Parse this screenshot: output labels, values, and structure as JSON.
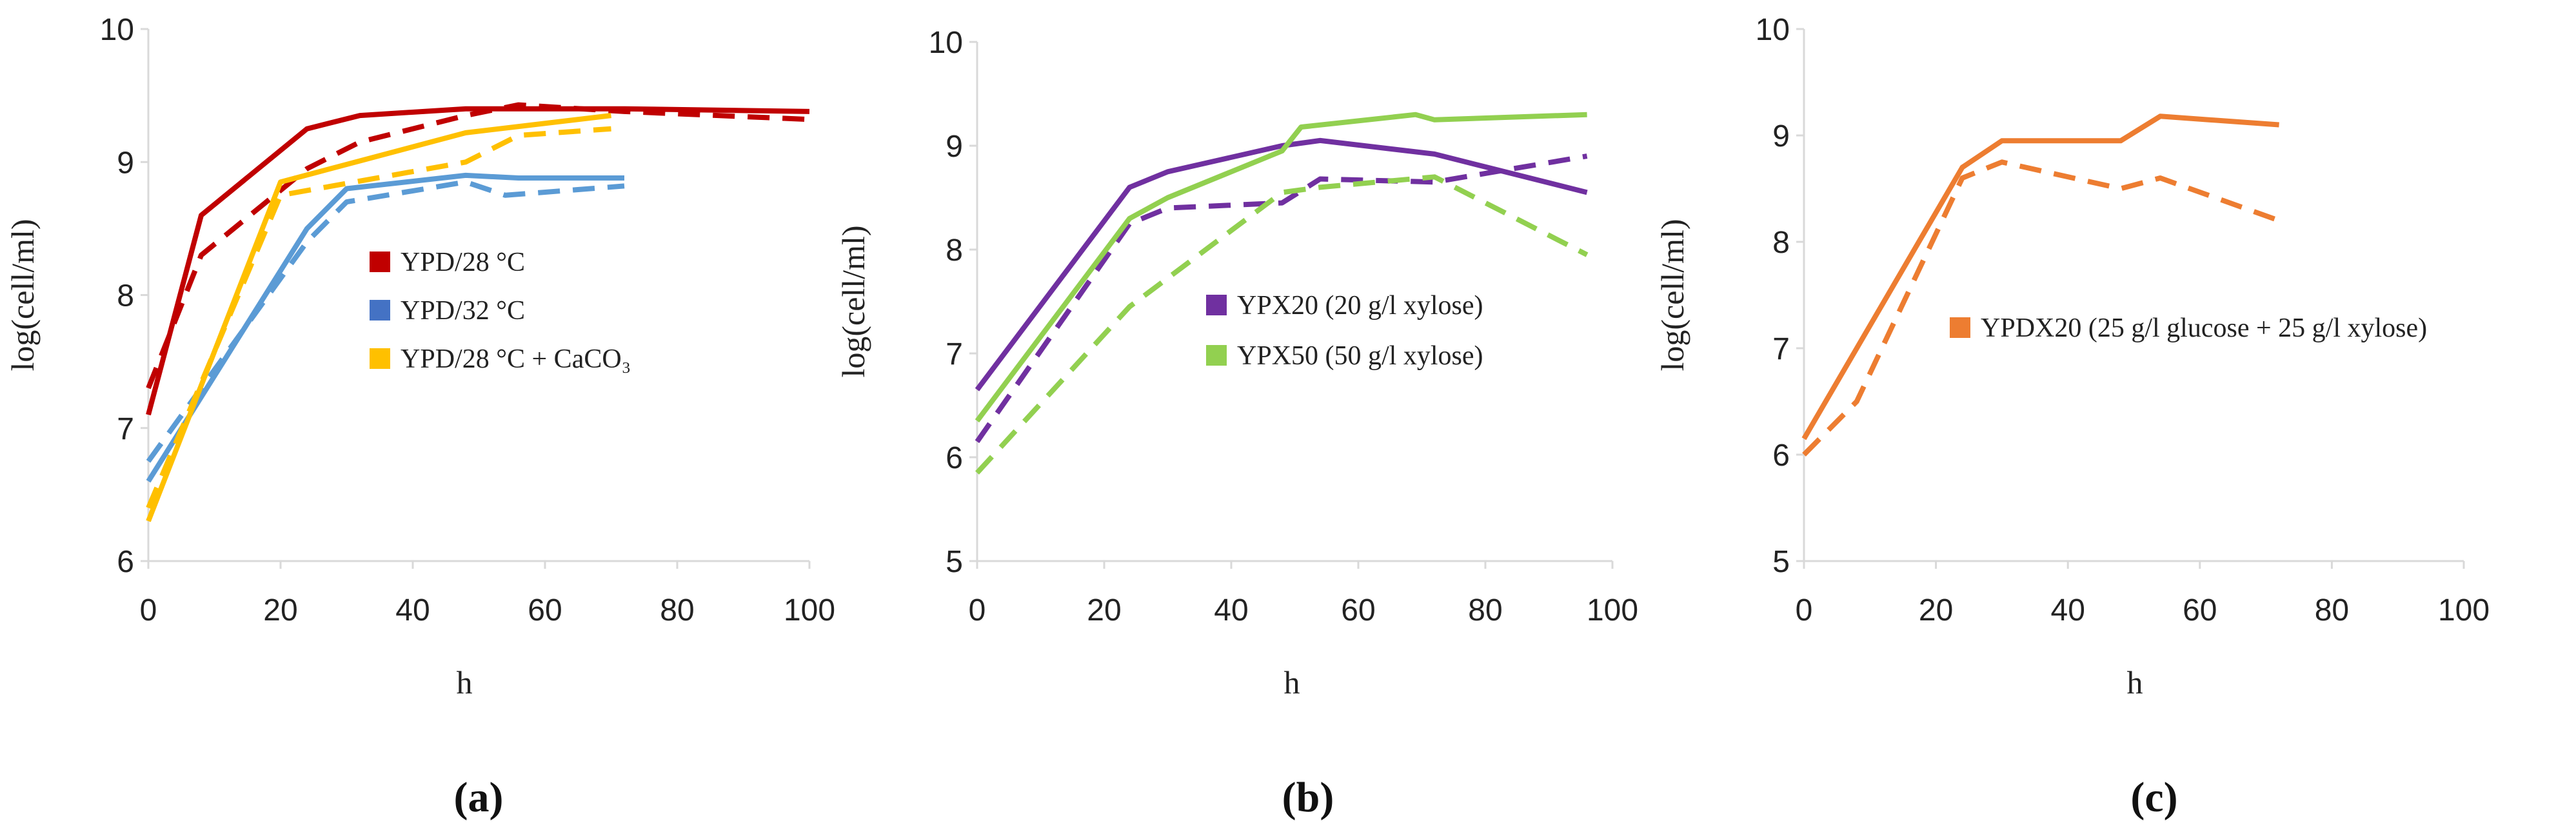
{
  "chart_data": [
    {
      "type": "line",
      "panel_label": "(a)",
      "xlabel": "h",
      "ylabel": "log(cell/ml)",
      "xlim": [
        0,
        100
      ],
      "ylim": [
        6,
        10
      ],
      "xticks": [
        0,
        20,
        40,
        60,
        80,
        100
      ],
      "yticks": [
        6,
        7,
        8,
        9,
        10
      ],
      "grid": false,
      "legend_position": "center",
      "legend": [
        {
          "label": "YPD/28 °C",
          "color": "#C00000"
        },
        {
          "label": "YPD/32 °C",
          "color": "#4472C4"
        },
        {
          "label": "YPD/28 °C + CaCO₃",
          "color": "#FFC000"
        }
      ],
      "series": [
        {
          "name": "YPD/28 °C solid",
          "color": "#C00000",
          "style": "solid",
          "x": [
            0,
            8,
            24,
            32,
            48,
            72,
            100
          ],
          "y": [
            7.1,
            8.6,
            9.25,
            9.35,
            9.4,
            9.4,
            9.38
          ]
        },
        {
          "name": "YPD/28 °C dashed",
          "color": "#C00000",
          "style": "dashed",
          "x": [
            0,
            8,
            24,
            32,
            48,
            56,
            72,
            100
          ],
          "y": [
            7.3,
            8.3,
            8.95,
            9.15,
            9.35,
            9.43,
            9.38,
            9.32
          ]
        },
        {
          "name": "YPD/32 °C solid",
          "color": "#5B9BD5",
          "style": "solid",
          "x": [
            0,
            24,
            30,
            48,
            56,
            72
          ],
          "y": [
            6.6,
            8.5,
            8.8,
            8.9,
            8.88,
            8.88
          ]
        },
        {
          "name": "YPD/32 °C dashed",
          "color": "#5B9BD5",
          "style": "dashed",
          "x": [
            0,
            24,
            30,
            48,
            54,
            72
          ],
          "y": [
            6.75,
            8.4,
            8.7,
            8.85,
            8.75,
            8.82
          ]
        },
        {
          "name": "YPD/28 °C + CaCO₃ solid",
          "color": "#FFC000",
          "style": "solid",
          "x": [
            0,
            20,
            48,
            70
          ],
          "y": [
            6.3,
            8.85,
            9.22,
            9.35
          ]
        },
        {
          "name": "YPD/28 °C + CaCO₃ dashed",
          "color": "#FFC000",
          "style": "dashed",
          "x": [
            0,
            20,
            48,
            56,
            70
          ],
          "y": [
            6.4,
            8.75,
            9.0,
            9.2,
            9.25
          ]
        }
      ]
    },
    {
      "type": "line",
      "panel_label": "(b)",
      "xlabel": "h",
      "ylabel": "log(cell/ml)",
      "xlim": [
        0,
        100
      ],
      "ylim": [
        5,
        10
      ],
      "xticks": [
        0,
        20,
        40,
        60,
        80,
        100
      ],
      "yticks": [
        5,
        6,
        7,
        8,
        9,
        10
      ],
      "grid": false,
      "legend_position": "center-right",
      "legend": [
        {
          "label": "YPX20 (20 g/l xylose)",
          "color": "#7030A0"
        },
        {
          "label": "YPX50 (50 g/l xylose)",
          "color": "#92D050"
        }
      ],
      "series": [
        {
          "name": "YPX20 solid",
          "color": "#7030A0",
          "style": "solid",
          "x": [
            0,
            24,
            30,
            48,
            54,
            72,
            96
          ],
          "y": [
            6.65,
            8.6,
            8.75,
            9.0,
            9.05,
            8.92,
            8.55
          ]
        },
        {
          "name": "YPX20 dashed",
          "color": "#7030A0",
          "style": "dashed",
          "x": [
            0,
            24,
            30,
            48,
            54,
            72,
            96
          ],
          "y": [
            6.15,
            8.25,
            8.4,
            8.45,
            8.68,
            8.65,
            8.9
          ]
        },
        {
          "name": "YPX50 solid",
          "color": "#92D050",
          "style": "solid",
          "x": [
            0,
            24,
            30,
            48,
            51,
            69,
            72,
            96
          ],
          "y": [
            6.35,
            8.3,
            8.5,
            8.95,
            9.18,
            9.3,
            9.25,
            9.3
          ]
        },
        {
          "name": "YPX50 dashed",
          "color": "#92D050",
          "style": "dashed",
          "x": [
            0,
            24,
            48,
            54,
            72,
            96
          ],
          "y": [
            5.85,
            7.45,
            8.55,
            8.6,
            8.7,
            7.95
          ]
        }
      ]
    },
    {
      "type": "line",
      "panel_label": "(c)",
      "xlabel": "h",
      "ylabel": "log(cell/ml)",
      "xlim": [
        0,
        100
      ],
      "ylim": [
        5,
        10
      ],
      "xticks": [
        0,
        20,
        40,
        60,
        80,
        100
      ],
      "yticks": [
        5,
        6,
        7,
        8,
        9,
        10
      ],
      "grid": false,
      "legend_position": "center-right",
      "legend": [
        {
          "label": "YPDX20 (25 g/l glucose + 25 g/l xylose)",
          "color": "#ED7D31"
        }
      ],
      "series": [
        {
          "name": "YPDX20 solid",
          "color": "#ED7D31",
          "style": "solid",
          "x": [
            0,
            24,
            30,
            48,
            54,
            72
          ],
          "y": [
            6.15,
            8.7,
            8.95,
            8.95,
            9.18,
            9.1
          ]
        },
        {
          "name": "YPDX20 dashed",
          "color": "#ED7D31",
          "style": "dashed",
          "x": [
            0,
            8,
            24,
            30,
            48,
            54,
            72
          ],
          "y": [
            6.0,
            6.5,
            8.6,
            8.75,
            8.5,
            8.6,
            8.2
          ]
        }
      ]
    }
  ]
}
